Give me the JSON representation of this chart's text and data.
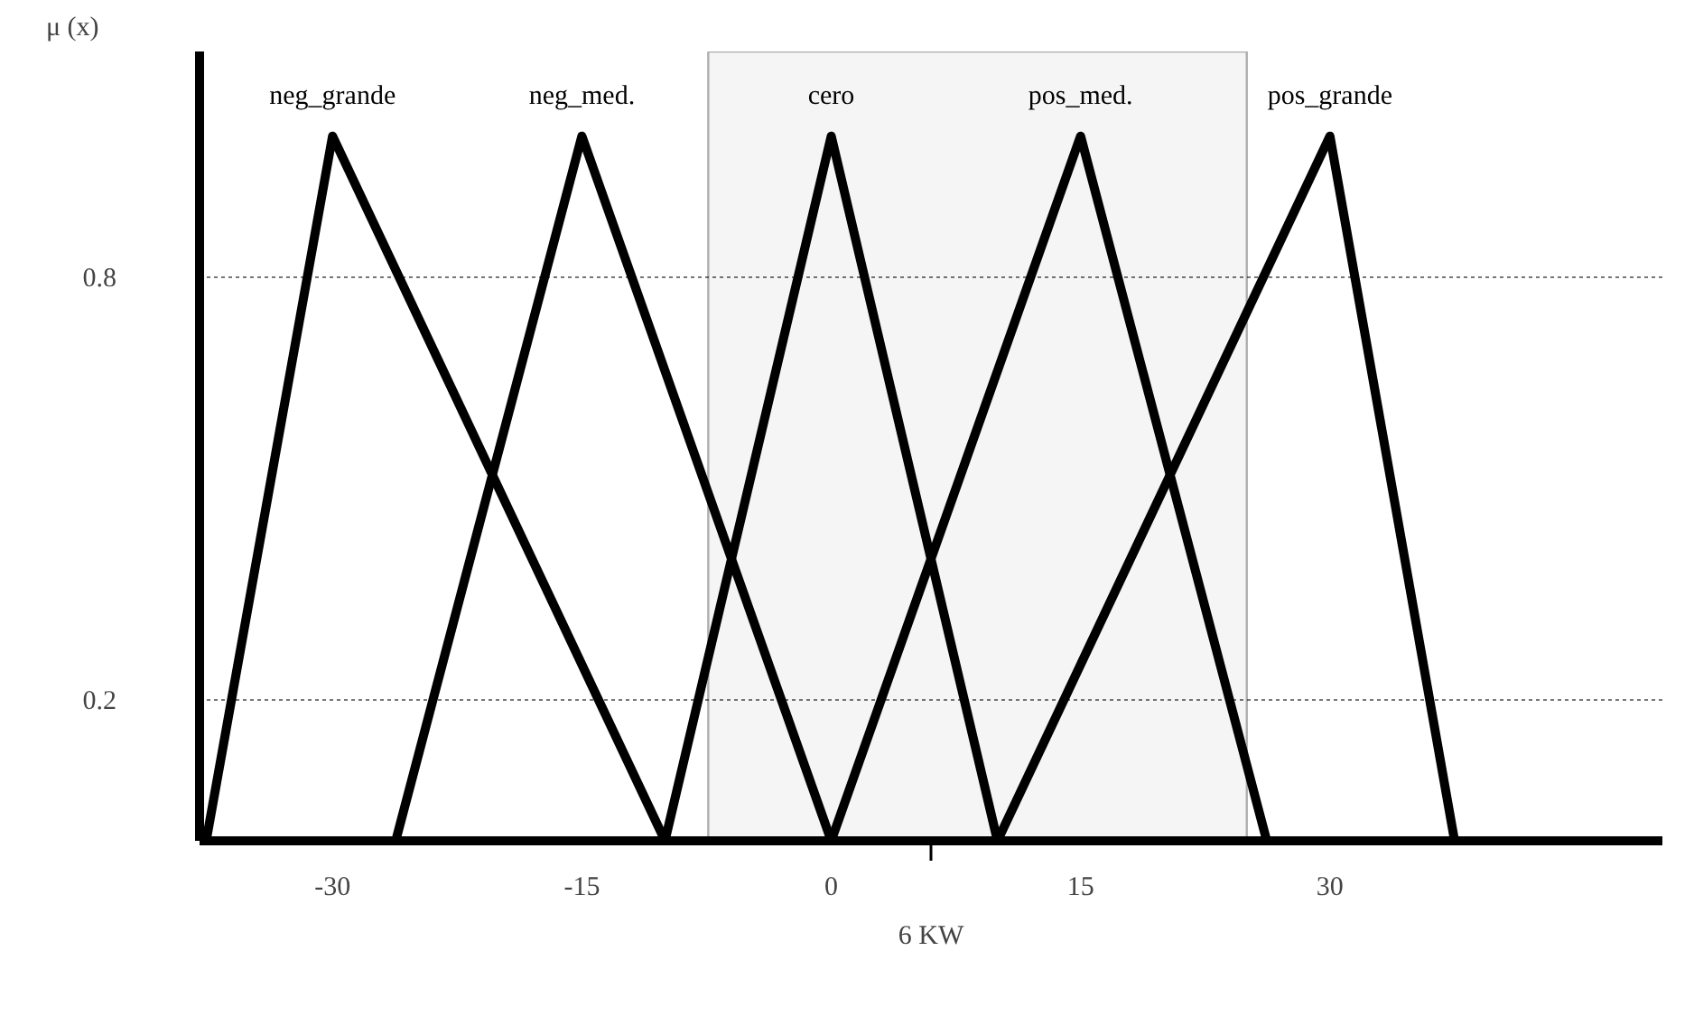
{
  "chart_data": {
    "type": "line",
    "ylabel": "μ (x)",
    "xlim": [
      -38,
      50
    ],
    "ylim": [
      0,
      1.12
    ],
    "xticks": [
      -30,
      -15,
      0,
      15,
      30
    ],
    "yticks": [
      0.2,
      0.8
    ],
    "grid": "y",
    "marker": "none",
    "line_style": "solid",
    "series": [
      {
        "name": "neg_grande",
        "color": "#000000",
        "x": [
          -37.6,
          -30,
          -10
        ],
        "values": [
          0,
          1,
          0
        ]
      },
      {
        "name": "neg_med.",
        "color": "#000000",
        "x": [
          -26.2,
          -15,
          0
        ],
        "values": [
          0,
          1,
          0
        ]
      },
      {
        "name": "cero",
        "color": "#000000",
        "x": [
          -10,
          0,
          10
        ],
        "values": [
          0,
          1,
          0
        ]
      },
      {
        "name": "pos_med.",
        "color": "#000000",
        "x": [
          0,
          15,
          26.2
        ],
        "values": [
          0,
          1,
          0
        ]
      },
      {
        "name": "pos_grande",
        "color": "#000000",
        "x": [
          10,
          30,
          37.5
        ],
        "values": [
          0,
          1,
          0
        ]
      }
    ],
    "bands": [
      {
        "axis": "x",
        "from": -7.4,
        "to": 25,
        "color": "#000000"
      }
    ],
    "annotations": [
      {
        "text": "6 KW",
        "x": 6,
        "y": 0
      }
    ]
  }
}
